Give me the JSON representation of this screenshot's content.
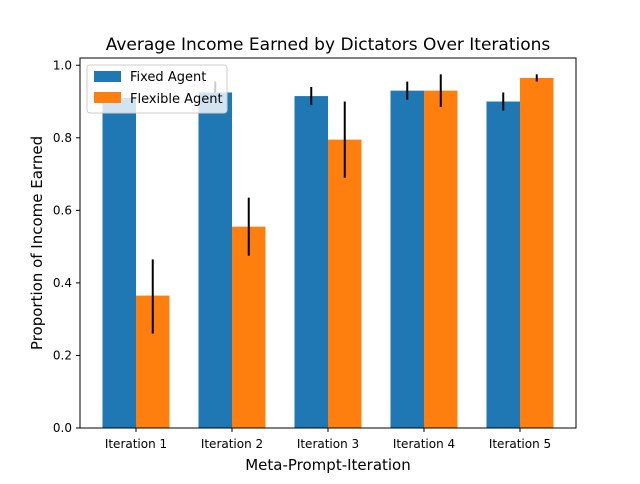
{
  "chart_data": {
    "type": "bar",
    "title": "Average Income Earned by Dictators Over Iterations",
    "xlabel": "Meta-Prompt-Iteration",
    "ylabel": "Proportion of Income Earned",
    "categories": [
      "Iteration 1",
      "Iteration 2",
      "Iteration 3",
      "Iteration 4",
      "Iteration 5"
    ],
    "ylim": [
      0,
      1.02
    ],
    "yticks": [
      0.0,
      0.2,
      0.4,
      0.6,
      0.8,
      1.0
    ],
    "ytick_labels": [
      "0.0",
      "0.2",
      "0.4",
      "0.6",
      "0.8",
      "1.0"
    ],
    "legend_position": "top-left",
    "grid": false,
    "series": [
      {
        "name": "Fixed Agent",
        "color": "#1f77b4",
        "values": [
          0.91,
          0.925,
          0.915,
          0.93,
          0.9
        ],
        "error_low": [
          0.91,
          0.925,
          0.89,
          0.905,
          0.875
        ],
        "error_high": [
          0.91,
          0.955,
          0.94,
          0.955,
          0.925
        ]
      },
      {
        "name": "Flexible Agent",
        "color": "#ff7f0e",
        "values": [
          0.365,
          0.555,
          0.795,
          0.93,
          0.965
        ],
        "error_low": [
          0.26,
          0.475,
          0.69,
          0.885,
          0.955
        ],
        "error_high": [
          0.465,
          0.635,
          0.9,
          0.975,
          0.975
        ]
      }
    ]
  }
}
